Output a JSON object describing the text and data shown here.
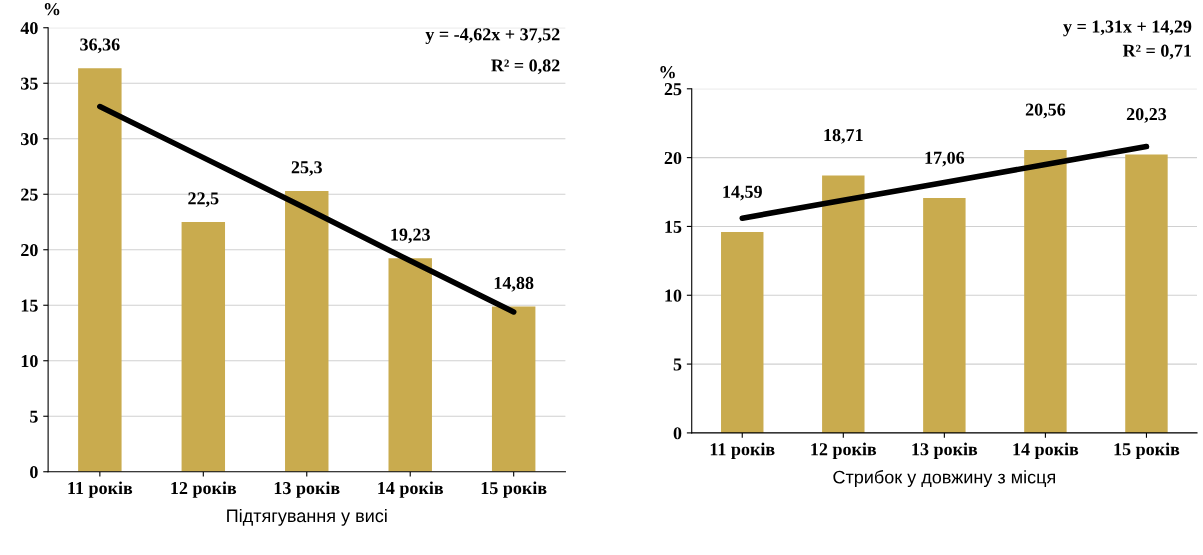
{
  "chart_data": [
    {
      "type": "bar",
      "xlabel": "Підтягування у висі",
      "ylabel": "%",
      "categories": [
        "11 років",
        "12 років",
        "13 років",
        "14 років",
        "15 років"
      ],
      "series": [
        {
          "color": "#c9ab4e",
          "values": [
            36.36,
            22.5,
            25.3,
            19.23,
            14.88
          ],
          "value_labels": [
            "36,36",
            "22,5",
            "25,3",
            "19,23",
            "14,88"
          ]
        },
        {
          "type": "line",
          "color": "#000000",
          "values": [
            32.9,
            28.3,
            23.7,
            19.0,
            14.4
          ]
        }
      ],
      "ylim": [
        0,
        40
      ],
      "yticks": [
        0,
        5,
        10,
        15,
        20,
        25,
        30,
        35,
        40
      ],
      "grid": "y",
      "legend": false,
      "annotations": [
        "y = -4,62x + 37,52",
        "R² = 0,82"
      ]
    },
    {
      "type": "bar",
      "xlabel": "Стрибок у довжину з місця",
      "ylabel": "%",
      "categories": [
        "11 років",
        "12 років",
        "13 років",
        "14 років",
        "15 років"
      ],
      "series": [
        {
          "color": "#c9ab4e",
          "values": [
            14.59,
            18.71,
            17.06,
            20.56,
            20.23
          ],
          "value_labels": [
            "14,59",
            "18,71",
            "17,06",
            "20,56",
            "20,23"
          ]
        },
        {
          "type": "line",
          "color": "#000000",
          "values": [
            15.6,
            16.9,
            18.2,
            19.5,
            20.8
          ]
        }
      ],
      "ylim": [
        0,
        25
      ],
      "yticks": [
        0,
        5,
        10,
        15,
        20,
        25
      ],
      "grid": "y",
      "legend": false,
      "annotations": [
        "y = 1,31x + 14,29",
        "R² = 0,71"
      ]
    }
  ]
}
